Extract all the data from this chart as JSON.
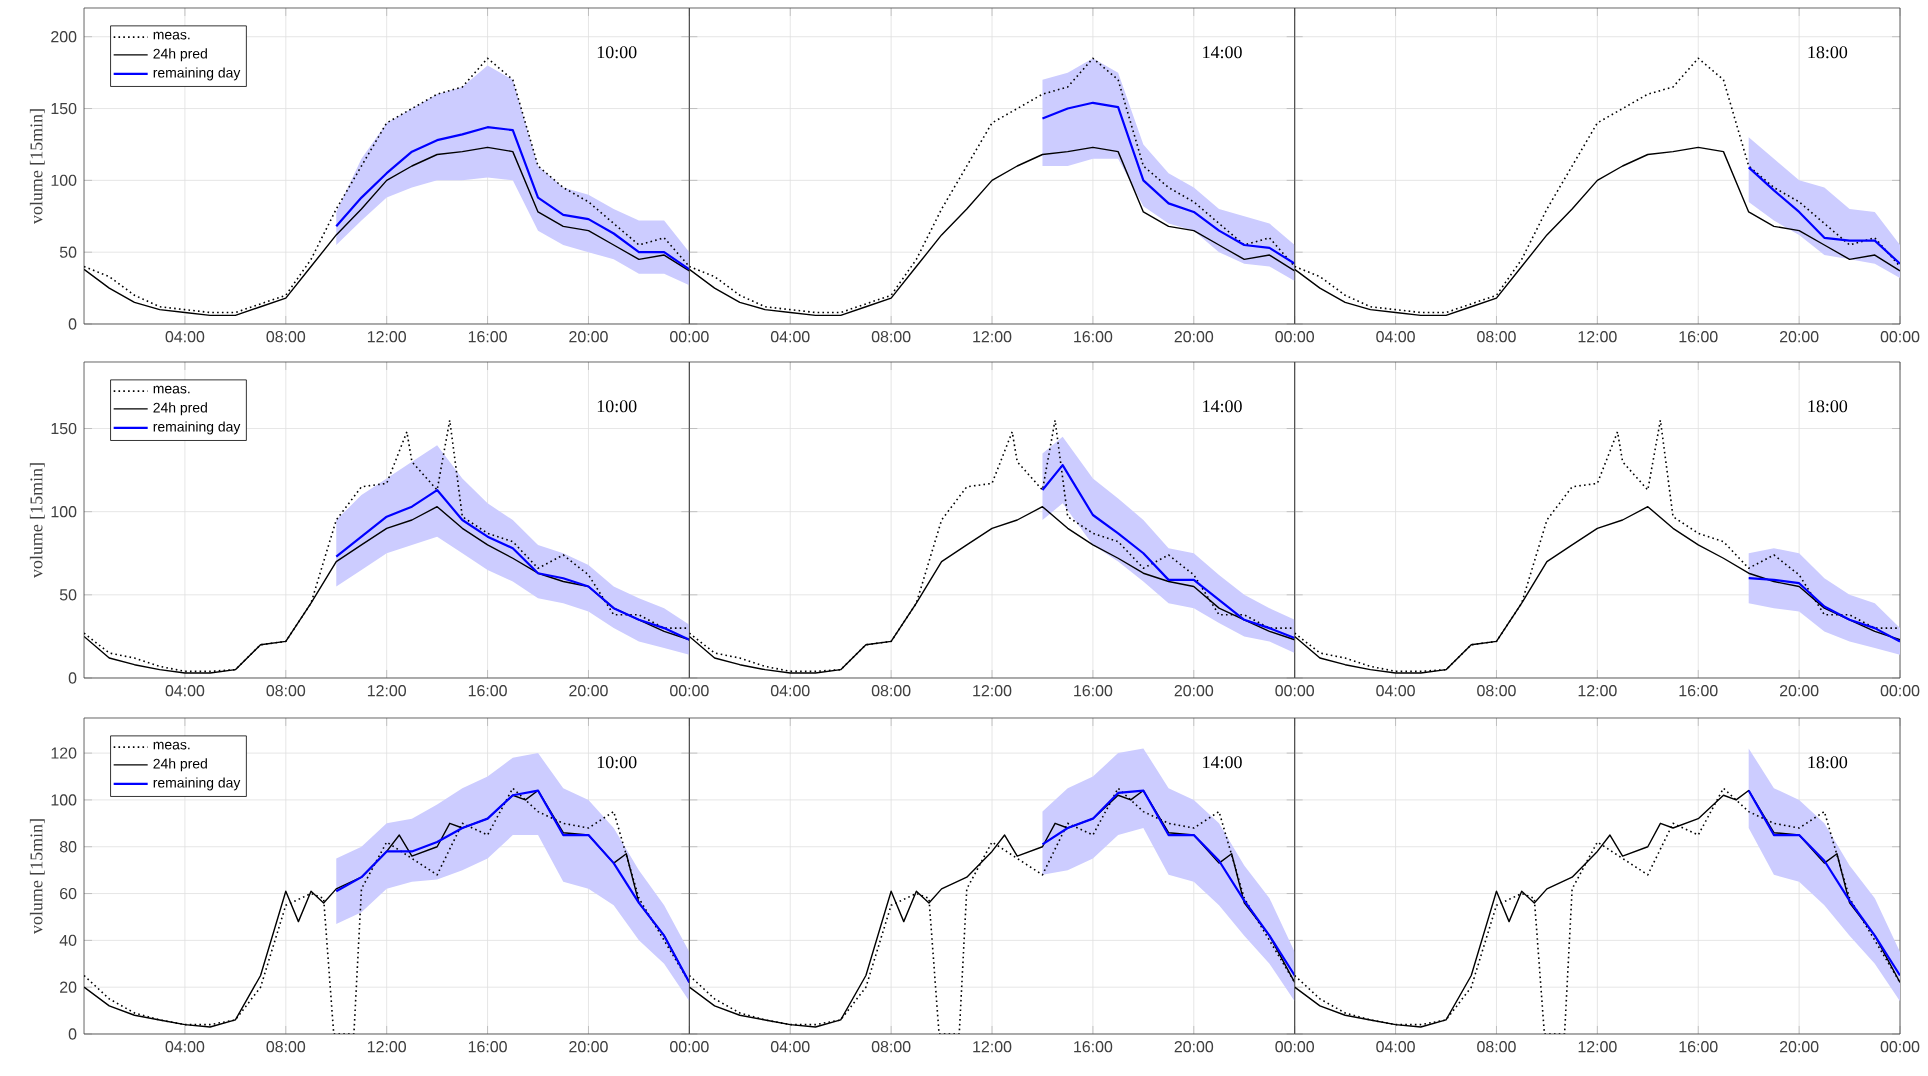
{
  "chart_data": [
    {
      "type": "line",
      "ylabel": "volume [15min]",
      "xlim": [
        0,
        24
      ],
      "ylim": [
        0,
        220
      ],
      "yticks": [
        0,
        50,
        100,
        150,
        200
      ],
      "grid": true,
      "legend": "top left",
      "xticks": [
        {
          "value": 4,
          "label": "04:00"
        },
        {
          "value": 8,
          "label": "08:00"
        },
        {
          "value": 12,
          "label": "12:00"
        },
        {
          "value": 16,
          "label": "16:00"
        },
        {
          "value": 20,
          "label": "20:00"
        },
        {
          "value": 24,
          "label": "00:00"
        }
      ],
      "annotations": [
        "10:00"
      ],
      "series": [
        {
          "name": "meas.",
          "color": "#000000",
          "line_style": "dotted",
          "x": [
            0,
            1,
            2,
            3,
            4,
            5,
            6,
            7,
            8,
            9,
            10,
            11,
            12,
            13,
            14,
            15,
            16,
            17,
            18,
            19,
            20,
            21,
            22,
            23,
            24
          ],
          "values": [
            40,
            33,
            20,
            12,
            10,
            8,
            8,
            14,
            20,
            45,
            80,
            110,
            140,
            150,
            160,
            165,
            185,
            170,
            110,
            95,
            85,
            70,
            55,
            60,
            40
          ]
        },
        {
          "name": "24h pred",
          "color": "#000000",
          "line_style": "solid",
          "x": [
            0,
            1,
            2,
            3,
            4,
            5,
            6,
            7,
            8,
            9,
            10,
            11,
            12,
            13,
            14,
            15,
            16,
            17,
            18,
            19,
            20,
            21,
            22,
            23,
            24
          ],
          "values": [
            38,
            25,
            15,
            10,
            8,
            6,
            6,
            12,
            18,
            40,
            62,
            80,
            100,
            110,
            118,
            120,
            123,
            120,
            78,
            68,
            65,
            55,
            45,
            48,
            37
          ]
        },
        {
          "name": "remaining day",
          "color": "#0000ff",
          "line_style": "solid",
          "x": [
            10,
            11,
            12,
            13,
            14,
            15,
            16,
            17,
            18,
            19,
            20,
            21,
            22,
            23,
            24
          ],
          "values": [
            68,
            88,
            105,
            120,
            128,
            132,
            137,
            135,
            88,
            76,
            73,
            63,
            50,
            50,
            38
          ],
          "lower": [
            55,
            72,
            88,
            95,
            100,
            100,
            102,
            100,
            65,
            55,
            50,
            45,
            35,
            35,
            27
          ],
          "upper": [
            78,
            115,
            140,
            150,
            160,
            165,
            180,
            170,
            110,
            95,
            90,
            80,
            72,
            72,
            50
          ]
        }
      ]
    },
    {
      "type": "line",
      "xlim": [
        0,
        24
      ],
      "ylim": [
        0,
        220
      ],
      "yticks": [
        0,
        50,
        100,
        150,
        200
      ],
      "grid": true,
      "tick_labels": "x",
      "xticks": [
        {
          "value": 4,
          "label": "04:00"
        },
        {
          "value": 8,
          "label": "08:00"
        },
        {
          "value": 12,
          "label": "12:00"
        },
        {
          "value": 16,
          "label": "16:00"
        },
        {
          "value": 20,
          "label": "20:00"
        },
        {
          "value": 24,
          "label": "00:00"
        }
      ],
      "annotations": [
        "14:00"
      ],
      "series": [
        {
          "color": "#000000",
          "line_style": "dotted",
          "x": [
            0,
            1,
            2,
            3,
            4,
            5,
            6,
            7,
            8,
            9,
            10,
            11,
            12,
            13,
            14,
            15,
            16,
            17,
            18,
            19,
            20,
            21,
            22,
            23,
            24
          ],
          "values": [
            40,
            33,
            20,
            12,
            10,
            8,
            8,
            14,
            20,
            45,
            80,
            110,
            140,
            150,
            160,
            165,
            185,
            170,
            110,
            95,
            85,
            70,
            55,
            60,
            40
          ]
        },
        {
          "color": "#000000",
          "line_style": "solid",
          "x": [
            0,
            1,
            2,
            3,
            4,
            5,
            6,
            7,
            8,
            9,
            10,
            11,
            12,
            13,
            14,
            15,
            16,
            17,
            18,
            19,
            20,
            21,
            22,
            23,
            24
          ],
          "values": [
            38,
            25,
            15,
            10,
            8,
            6,
            6,
            12,
            18,
            40,
            62,
            80,
            100,
            110,
            118,
            120,
            123,
            120,
            78,
            68,
            65,
            55,
            45,
            48,
            37
          ]
        },
        {
          "color": "#0000ff",
          "line_style": "solid",
          "x": [
            14,
            15,
            16,
            17,
            18,
            19,
            20,
            21,
            22,
            23,
            24
          ],
          "values": [
            143,
            150,
            154,
            151,
            100,
            84,
            78,
            65,
            55,
            53,
            42
          ],
          "lower": [
            110,
            110,
            115,
            115,
            82,
            70,
            65,
            50,
            42,
            40,
            30
          ],
          "upper": [
            170,
            175,
            185,
            175,
            125,
            105,
            95,
            80,
            75,
            70,
            55
          ]
        }
      ]
    },
    {
      "type": "line",
      "xlim": [
        0,
        24
      ],
      "ylim": [
        0,
        220
      ],
      "yticks": [
        0,
        50,
        100,
        150,
        200
      ],
      "grid": true,
      "tick_labels": "x",
      "xticks": [
        {
          "value": 4,
          "label": "04:00"
        },
        {
          "value": 8,
          "label": "08:00"
        },
        {
          "value": 12,
          "label": "12:00"
        },
        {
          "value": 16,
          "label": "16:00"
        },
        {
          "value": 20,
          "label": "20:00"
        },
        {
          "value": 24,
          "label": "00:00"
        }
      ],
      "annotations": [
        "18:00"
      ],
      "series": [
        {
          "color": "#000000",
          "line_style": "dotted",
          "x": [
            0,
            1,
            2,
            3,
            4,
            5,
            6,
            7,
            8,
            9,
            10,
            11,
            12,
            13,
            14,
            15,
            16,
            17,
            18,
            19,
            20,
            21,
            22,
            23,
            24
          ],
          "values": [
            40,
            33,
            20,
            12,
            10,
            8,
            8,
            14,
            20,
            45,
            80,
            110,
            140,
            150,
            160,
            165,
            185,
            170,
            110,
            95,
            85,
            70,
            55,
            60,
            40
          ]
        },
        {
          "color": "#000000",
          "line_style": "solid",
          "x": [
            0,
            1,
            2,
            3,
            4,
            5,
            6,
            7,
            8,
            9,
            10,
            11,
            12,
            13,
            14,
            15,
            16,
            17,
            18,
            19,
            20,
            21,
            22,
            23,
            24
          ],
          "values": [
            38,
            25,
            15,
            10,
            8,
            6,
            6,
            12,
            18,
            40,
            62,
            80,
            100,
            110,
            118,
            120,
            123,
            120,
            78,
            68,
            65,
            55,
            45,
            48,
            37
          ]
        },
        {
          "color": "#0000ff",
          "line_style": "solid",
          "x": [
            18,
            19,
            20,
            21,
            22,
            23,
            24
          ],
          "values": [
            109,
            93,
            78,
            60,
            58,
            58,
            42
          ],
          "lower": [
            85,
            72,
            62,
            48,
            45,
            42,
            32
          ],
          "upper": [
            130,
            115,
            100,
            95,
            80,
            78,
            55
          ]
        }
      ]
    },
    {
      "type": "line",
      "ylabel": "volume [15min]",
      "xlim": [
        0,
        24
      ],
      "ylim": [
        0,
        190
      ],
      "yticks": [
        0,
        50,
        100,
        150
      ],
      "grid": true,
      "legend": "top left",
      "xticks": [
        {
          "value": 4,
          "label": "04:00"
        },
        {
          "value": 8,
          "label": "08:00"
        },
        {
          "value": 12,
          "label": "12:00"
        },
        {
          "value": 16,
          "label": "16:00"
        },
        {
          "value": 20,
          "label": "20:00"
        },
        {
          "value": 24,
          "label": "00:00"
        }
      ],
      "annotations": [
        "10:00"
      ],
      "series": [
        {
          "name": "meas.",
          "color": "#000000",
          "line_style": "dotted",
          "x": [
            0,
            1,
            2,
            3,
            4,
            5,
            6,
            7,
            8,
            9,
            10,
            11,
            12,
            12.8,
            13,
            14,
            14.5,
            15,
            16,
            17,
            18,
            19,
            20,
            21,
            22,
            23,
            24
          ],
          "values": [
            27,
            15,
            12,
            7,
            4,
            4,
            5,
            20,
            22,
            45,
            95,
            115,
            117,
            148,
            130,
            113,
            155,
            97,
            87,
            82,
            66,
            74,
            62,
            38,
            38,
            30,
            30
          ]
        },
        {
          "name": "24h pred",
          "color": "#000000",
          "line_style": "solid",
          "x": [
            0,
            1,
            2,
            3,
            4,
            5,
            6,
            7,
            8,
            9,
            10,
            11,
            12,
            13,
            14,
            15,
            16,
            17,
            18,
            19,
            20,
            21,
            22,
            23,
            24
          ],
          "values": [
            25,
            12,
            8,
            5,
            3,
            3,
            5,
            20,
            22,
            45,
            70,
            80,
            90,
            95,
            103,
            90,
            80,
            72,
            63,
            58,
            55,
            42,
            35,
            28,
            23
          ]
        },
        {
          "name": "remaining day",
          "color": "#0000ff",
          "line_style": "solid",
          "x": [
            10,
            11,
            12,
            13,
            14,
            15,
            16,
            17,
            18,
            19,
            20,
            21,
            22,
            23,
            24
          ],
          "values": [
            73,
            85,
            97,
            103,
            113,
            95,
            85,
            78,
            63,
            60,
            55,
            42,
            35,
            30,
            23
          ],
          "lower": [
            55,
            65,
            75,
            80,
            85,
            75,
            65,
            58,
            48,
            45,
            40,
            30,
            22,
            18,
            14
          ],
          "upper": [
            95,
            110,
            120,
            130,
            140,
            120,
            105,
            95,
            80,
            75,
            68,
            55,
            48,
            42,
            32
          ]
        }
      ]
    },
    {
      "type": "line",
      "xlim": [
        0,
        24
      ],
      "ylim": [
        0,
        190
      ],
      "yticks": [
        0,
        50,
        100,
        150
      ],
      "grid": true,
      "tick_labels": "x",
      "xticks": [
        {
          "value": 4,
          "label": "04:00"
        },
        {
          "value": 8,
          "label": "08:00"
        },
        {
          "value": 12,
          "label": "12:00"
        },
        {
          "value": 16,
          "label": "16:00"
        },
        {
          "value": 20,
          "label": "20:00"
        },
        {
          "value": 24,
          "label": "00:00"
        }
      ],
      "annotations": [
        "14:00"
      ],
      "series": [
        {
          "color": "#000000",
          "line_style": "dotted",
          "x": [
            0,
            1,
            2,
            3,
            4,
            5,
            6,
            7,
            8,
            9,
            10,
            11,
            12,
            12.8,
            13,
            14,
            14.5,
            15,
            16,
            17,
            18,
            19,
            20,
            21,
            22,
            23,
            24
          ],
          "values": [
            27,
            15,
            12,
            7,
            4,
            4,
            5,
            20,
            22,
            45,
            95,
            115,
            117,
            148,
            130,
            113,
            155,
            97,
            87,
            82,
            66,
            74,
            62,
            38,
            38,
            30,
            30
          ]
        },
        {
          "color": "#000000",
          "line_style": "solid",
          "x": [
            0,
            1,
            2,
            3,
            4,
            5,
            6,
            7,
            8,
            9,
            10,
            11,
            12,
            13,
            14,
            15,
            16,
            17,
            18,
            19,
            20,
            21,
            22,
            23,
            24
          ],
          "values": [
            25,
            12,
            8,
            5,
            3,
            3,
            5,
            20,
            22,
            45,
            70,
            80,
            90,
            95,
            103,
            90,
            80,
            72,
            63,
            58,
            55,
            42,
            35,
            28,
            23
          ]
        },
        {
          "color": "#0000ff",
          "line_style": "solid",
          "x": [
            14,
            14.8,
            16,
            17,
            18,
            19,
            20,
            21,
            22,
            23,
            24
          ],
          "values": [
            113,
            128,
            98,
            87,
            75,
            59,
            59,
            47,
            35,
            30,
            24
          ],
          "lower": [
            95,
            105,
            80,
            70,
            58,
            45,
            42,
            33,
            25,
            22,
            15
          ],
          "upper": [
            135,
            145,
            120,
            108,
            95,
            78,
            75,
            62,
            50,
            42,
            35
          ]
        }
      ]
    },
    {
      "type": "line",
      "xlim": [
        0,
        24
      ],
      "ylim": [
        0,
        190
      ],
      "yticks": [
        0,
        50,
        100,
        150
      ],
      "grid": true,
      "tick_labels": "x",
      "xticks": [
        {
          "value": 4,
          "label": "04:00"
        },
        {
          "value": 8,
          "label": "08:00"
        },
        {
          "value": 12,
          "label": "12:00"
        },
        {
          "value": 16,
          "label": "16:00"
        },
        {
          "value": 20,
          "label": "20:00"
        },
        {
          "value": 24,
          "label": "00:00"
        }
      ],
      "annotations": [
        "18:00"
      ],
      "series": [
        {
          "color": "#000000",
          "line_style": "dotted",
          "x": [
            0,
            1,
            2,
            3,
            4,
            5,
            6,
            7,
            8,
            9,
            10,
            11,
            12,
            12.8,
            13,
            14,
            14.5,
            15,
            16,
            17,
            18,
            19,
            20,
            21,
            22,
            23,
            24
          ],
          "values": [
            27,
            15,
            12,
            7,
            4,
            4,
            5,
            20,
            22,
            45,
            95,
            115,
            117,
            148,
            130,
            113,
            155,
            97,
            87,
            82,
            66,
            74,
            62,
            38,
            38,
            30,
            30
          ]
        },
        {
          "color": "#000000",
          "line_style": "solid",
          "x": [
            0,
            1,
            2,
            3,
            4,
            5,
            6,
            7,
            8,
            9,
            10,
            11,
            12,
            13,
            14,
            15,
            16,
            17,
            18,
            19,
            20,
            21,
            22,
            23,
            24
          ],
          "values": [
            25,
            12,
            8,
            5,
            3,
            3,
            5,
            20,
            22,
            45,
            70,
            80,
            90,
            95,
            103,
            90,
            80,
            72,
            63,
            58,
            55,
            42,
            35,
            28,
            23
          ]
        },
        {
          "color": "#0000ff",
          "line_style": "solid",
          "x": [
            18,
            19,
            20,
            21,
            22,
            23,
            24
          ],
          "values": [
            60,
            59,
            57,
            43,
            35,
            30,
            22
          ],
          "lower": [
            45,
            42,
            40,
            28,
            22,
            18,
            14
          ],
          "upper": [
            75,
            78,
            75,
            60,
            50,
            45,
            30
          ]
        }
      ]
    },
    {
      "type": "line",
      "ylabel": "volume [15min]",
      "xlim": [
        0,
        24
      ],
      "ylim": [
        0,
        135
      ],
      "yticks": [
        0,
        20,
        40,
        60,
        80,
        100,
        120
      ],
      "grid": true,
      "legend": "top left",
      "xticks": [
        {
          "value": 4,
          "label": "04:00"
        },
        {
          "value": 8,
          "label": "08:00"
        },
        {
          "value": 12,
          "label": "12:00"
        },
        {
          "value": 16,
          "label": "16:00"
        },
        {
          "value": 20,
          "label": "20:00"
        },
        {
          "value": 24,
          "label": "00:00"
        }
      ],
      "annotations": [
        "10:00"
      ],
      "series": [
        {
          "name": "meas.",
          "color": "#000000",
          "line_style": "dotted",
          "x": [
            0,
            1,
            2,
            3,
            4,
            5,
            6,
            7,
            8,
            9,
            9.5,
            9.9,
            10.7,
            11,
            12,
            13,
            14,
            15,
            16,
            17,
            18,
            19,
            20,
            21,
            22,
            23,
            24
          ],
          "values": [
            25,
            15,
            9,
            6,
            4,
            4,
            6,
            20,
            55,
            60,
            58,
            0,
            0,
            62,
            82,
            75,
            68,
            90,
            85,
            105,
            95,
            90,
            88,
            95,
            58,
            40,
            22
          ]
        },
        {
          "name": "24h pred",
          "color": "#000000",
          "line_style": "solid",
          "x": [
            0,
            1,
            2,
            3,
            4,
            5,
            6,
            7,
            8,
            8.5,
            9,
            9.5,
            10,
            11,
            12,
            12.5,
            13,
            14,
            14.5,
            15,
            16,
            17,
            17.5,
            18,
            19,
            20,
            21,
            21.5,
            22,
            23,
            24
          ],
          "values": [
            20,
            12,
            8,
            6,
            4,
            3,
            6,
            25,
            61,
            48,
            61,
            56,
            62,
            67,
            78,
            85,
            76,
            80,
            90,
            88,
            92,
            102,
            100,
            104,
            86,
            85,
            73,
            77,
            56,
            42,
            22
          ]
        },
        {
          "name": "remaining day",
          "color": "#0000ff",
          "line_style": "solid",
          "x": [
            10,
            11,
            12,
            13,
            14,
            15,
            16,
            17,
            18,
            19,
            20,
            21,
            22,
            23,
            24
          ],
          "values": [
            61,
            67,
            78,
            78,
            82,
            88,
            92,
            102,
            104,
            85,
            85,
            73,
            56,
            42,
            22
          ],
          "lower": [
            47,
            52,
            62,
            65,
            66,
            70,
            75,
            85,
            85,
            65,
            62,
            55,
            40,
            30,
            14
          ],
          "upper": [
            75,
            80,
            90,
            92,
            98,
            105,
            110,
            118,
            120,
            105,
            100,
            88,
            70,
            55,
            35
          ]
        }
      ]
    },
    {
      "type": "line",
      "xlim": [
        0,
        24
      ],
      "ylim": [
        0,
        135
      ],
      "yticks": [
        0,
        20,
        40,
        60,
        80,
        100,
        120
      ],
      "grid": true,
      "tick_labels": "x",
      "xticks": [
        {
          "value": 4,
          "label": "04:00"
        },
        {
          "value": 8,
          "label": "08:00"
        },
        {
          "value": 12,
          "label": "12:00"
        },
        {
          "value": 16,
          "label": "16:00"
        },
        {
          "value": 20,
          "label": "20:00"
        },
        {
          "value": 24,
          "label": "00:00"
        }
      ],
      "annotations": [
        "14:00"
      ],
      "series": [
        {
          "color": "#000000",
          "line_style": "dotted",
          "x": [
            0,
            1,
            2,
            3,
            4,
            5,
            6,
            7,
            8,
            9,
            9.5,
            9.9,
            10.7,
            11,
            12,
            13,
            14,
            15,
            16,
            17,
            18,
            19,
            20,
            21,
            22,
            23,
            24
          ],
          "values": [
            25,
            15,
            9,
            6,
            4,
            4,
            6,
            20,
            55,
            60,
            58,
            0,
            0,
            62,
            82,
            75,
            68,
            90,
            85,
            105,
            95,
            90,
            88,
            95,
            58,
            40,
            22
          ]
        },
        {
          "color": "#000000",
          "line_style": "solid",
          "x": [
            0,
            1,
            2,
            3,
            4,
            5,
            6,
            7,
            8,
            8.5,
            9,
            9.5,
            10,
            11,
            12,
            12.5,
            13,
            14,
            14.5,
            15,
            16,
            17,
            17.5,
            18,
            19,
            20,
            21,
            21.5,
            22,
            23,
            24
          ],
          "values": [
            20,
            12,
            8,
            6,
            4,
            3,
            6,
            25,
            61,
            48,
            61,
            56,
            62,
            67,
            78,
            85,
            76,
            80,
            90,
            88,
            92,
            102,
            100,
            104,
            86,
            85,
            73,
            77,
            56,
            42,
            22
          ]
        },
        {
          "color": "#0000ff",
          "line_style": "solid",
          "x": [
            14,
            15,
            16,
            17,
            18,
            19,
            20,
            21,
            22,
            23,
            24
          ],
          "values": [
            81,
            88,
            92,
            103,
            104,
            85,
            85,
            74,
            57,
            42,
            25
          ],
          "lower": [
            68,
            70,
            75,
            85,
            88,
            68,
            65,
            55,
            42,
            30,
            14
          ],
          "upper": [
            95,
            105,
            110,
            120,
            122,
            105,
            100,
            90,
            72,
            58,
            35
          ]
        }
      ]
    },
    {
      "type": "line",
      "xlim": [
        0,
        24
      ],
      "ylim": [
        0,
        135
      ],
      "yticks": [
        0,
        20,
        40,
        60,
        80,
        100,
        120
      ],
      "grid": true,
      "tick_labels": "x",
      "xticks": [
        {
          "value": 4,
          "label": "04:00"
        },
        {
          "value": 8,
          "label": "08:00"
        },
        {
          "value": 12,
          "label": "12:00"
        },
        {
          "value": 16,
          "label": "16:00"
        },
        {
          "value": 20,
          "label": "20:00"
        },
        {
          "value": 24,
          "label": "00:00"
        }
      ],
      "annotations": [
        "18:00"
      ],
      "series": [
        {
          "color": "#000000",
          "line_style": "dotted",
          "x": [
            0,
            1,
            2,
            3,
            4,
            5,
            6,
            7,
            8,
            9,
            9.5,
            9.9,
            10.7,
            11,
            12,
            13,
            14,
            15,
            16,
            17,
            18,
            19,
            20,
            21,
            22,
            23,
            24
          ],
          "values": [
            25,
            15,
            9,
            6,
            4,
            4,
            6,
            20,
            55,
            60,
            58,
            0,
            0,
            62,
            82,
            75,
            68,
            90,
            85,
            105,
            95,
            90,
            88,
            95,
            58,
            40,
            22
          ]
        },
        {
          "color": "#000000",
          "line_style": "solid",
          "x": [
            0,
            1,
            2,
            3,
            4,
            5,
            6,
            7,
            8,
            8.5,
            9,
            9.5,
            10,
            11,
            12,
            12.5,
            13,
            14,
            14.5,
            15,
            16,
            17,
            17.5,
            18,
            19,
            20,
            21,
            21.5,
            22,
            23,
            24
          ],
          "values": [
            20,
            12,
            8,
            6,
            4,
            3,
            6,
            25,
            61,
            48,
            61,
            56,
            62,
            67,
            78,
            85,
            76,
            80,
            90,
            88,
            92,
            102,
            100,
            104,
            86,
            85,
            73,
            77,
            56,
            42,
            22
          ]
        },
        {
          "color": "#0000ff",
          "line_style": "solid",
          "x": [
            18,
            19,
            20,
            21,
            22,
            23,
            24
          ],
          "values": [
            104,
            85,
            85,
            74,
            57,
            42,
            25
          ],
          "lower": [
            88,
            68,
            65,
            55,
            42,
            30,
            14
          ],
          "upper": [
            122,
            105,
            100,
            90,
            72,
            58,
            35
          ]
        }
      ]
    }
  ]
}
